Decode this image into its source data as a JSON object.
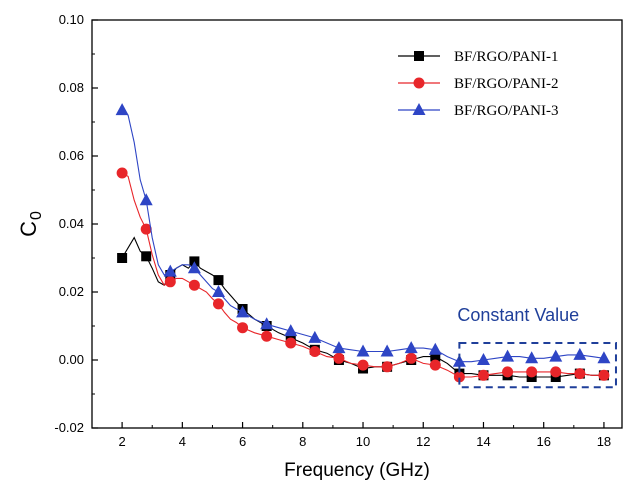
{
  "chart_data": {
    "type": "line",
    "title": "",
    "xlabel": "Frequency (GHz)",
    "ylabel": "C",
    "ylabel_subscript": "0",
    "xlim": [
      1.0,
      18.6
    ],
    "ylim": [
      -0.02,
      0.1
    ],
    "x_ticks": [
      2,
      4,
      6,
      8,
      10,
      12,
      14,
      16,
      18
    ],
    "x_tick_labels": [
      "2",
      "4",
      "6",
      "8",
      "10",
      "12",
      "14",
      "16",
      "18"
    ],
    "y_ticks": [
      -0.02,
      0.0,
      0.02,
      0.04,
      0.06,
      0.08,
      0.1
    ],
    "y_tick_labels": [
      "-0.02",
      "0.00",
      "0.02",
      "0.04",
      "0.06",
      "0.08",
      "0.10"
    ],
    "grid": false,
    "legend_position": "top-right",
    "series": [
      {
        "name": "BF/RGO/PANI-1",
        "color": "#000000",
        "marker": "square",
        "x": [
          2.0,
          2.8,
          3.6,
          4.4,
          5.2,
          6.0,
          6.8,
          7.6,
          8.4,
          9.2,
          10.0,
          10.8,
          11.6,
          12.4,
          13.2,
          14.0,
          14.8,
          15.6,
          16.4,
          17.2,
          18.0
        ],
        "y": [
          0.03,
          0.0305,
          0.025,
          0.029,
          0.0235,
          0.015,
          0.01,
          0.0065,
          0.003,
          0.0,
          -0.0025,
          -0.002,
          0.0,
          0.001,
          -0.004,
          -0.0045,
          -0.0045,
          -0.005,
          -0.005,
          -0.004,
          -0.0045
        ],
        "line_x": [
          2.0,
          2.2,
          2.4,
          2.6,
          2.8,
          3.0,
          3.2,
          3.4,
          3.6,
          3.8,
          4.0,
          4.2,
          4.4,
          4.6,
          4.8,
          5.0,
          5.2,
          5.4,
          5.6,
          5.8,
          6.0,
          6.4,
          6.8,
          7.2,
          7.6,
          8.0,
          8.4,
          8.8,
          9.2,
          9.6,
          10.0,
          10.4,
          10.8,
          11.2,
          11.6,
          12.0,
          12.4,
          12.8,
          13.2,
          13.6,
          14.0,
          14.4,
          14.8,
          15.2,
          15.6,
          16.0,
          16.4,
          16.8,
          17.2,
          17.6,
          18.0
        ],
        "line_y": [
          0.03,
          0.033,
          0.036,
          0.032,
          0.0305,
          0.027,
          0.023,
          0.022,
          0.025,
          0.027,
          0.028,
          0.027,
          0.029,
          0.027,
          0.026,
          0.025,
          0.0235,
          0.021,
          0.019,
          0.017,
          0.015,
          0.012,
          0.01,
          0.008,
          0.0065,
          0.005,
          0.003,
          0.002,
          0.0,
          -0.001,
          -0.0025,
          -0.002,
          -0.002,
          -0.001,
          0.0,
          0.001,
          0.001,
          -0.001,
          -0.004,
          -0.004,
          -0.0045,
          -0.0045,
          -0.0045,
          -0.005,
          -0.005,
          -0.005,
          -0.005,
          -0.0045,
          -0.004,
          -0.0045,
          -0.0045
        ]
      },
      {
        "name": "BF/RGO/PANI-2",
        "color": "#e8262a",
        "marker": "circle",
        "x": [
          2.0,
          2.8,
          3.6,
          4.4,
          5.2,
          6.0,
          6.8,
          7.6,
          8.4,
          9.2,
          10.0,
          10.8,
          11.6,
          12.4,
          13.2,
          14.0,
          14.8,
          15.6,
          16.4,
          17.2,
          18.0
        ],
        "y": [
          0.055,
          0.0385,
          0.023,
          0.022,
          0.0165,
          0.0095,
          0.007,
          0.005,
          0.0025,
          0.0005,
          -0.0015,
          -0.002,
          0.0005,
          -0.0015,
          -0.005,
          -0.0045,
          -0.0035,
          -0.0035,
          -0.0035,
          -0.004,
          -0.0045
        ],
        "line_x": [
          2.0,
          2.2,
          2.4,
          2.6,
          2.8,
          3.0,
          3.2,
          3.4,
          3.6,
          3.8,
          4.0,
          4.2,
          4.4,
          4.6,
          4.8,
          5.0,
          5.2,
          5.4,
          5.6,
          5.8,
          6.0,
          6.4,
          6.8,
          7.2,
          7.6,
          8.0,
          8.4,
          8.8,
          9.2,
          9.6,
          10.0,
          10.4,
          10.8,
          11.2,
          11.6,
          12.0,
          12.4,
          12.8,
          13.2,
          13.6,
          14.0,
          14.4,
          14.8,
          15.2,
          15.6,
          16.0,
          16.4,
          16.8,
          17.2,
          17.6,
          18.0
        ],
        "line_y": [
          0.055,
          0.054,
          0.047,
          0.042,
          0.0385,
          0.031,
          0.025,
          0.022,
          0.023,
          0.024,
          0.024,
          0.023,
          0.022,
          0.021,
          0.02,
          0.018,
          0.0165,
          0.014,
          0.012,
          0.011,
          0.0095,
          0.008,
          0.007,
          0.006,
          0.005,
          0.004,
          0.0025,
          0.001,
          0.0005,
          -0.001,
          -0.0015,
          -0.002,
          -0.002,
          -0.001,
          0.0005,
          -0.001,
          -0.0015,
          -0.003,
          -0.005,
          -0.005,
          -0.0045,
          -0.004,
          -0.0035,
          -0.0035,
          -0.0035,
          -0.0035,
          -0.0035,
          -0.004,
          -0.004,
          -0.0045,
          -0.0045
        ]
      },
      {
        "name": "BF/RGO/PANI-3",
        "color": "#2e45c5",
        "marker": "triangle",
        "x": [
          2.0,
          2.8,
          3.6,
          4.4,
          5.2,
          6.0,
          6.8,
          7.6,
          8.4,
          9.2,
          10.0,
          10.8,
          11.6,
          12.4,
          13.2,
          14.0,
          14.8,
          15.6,
          16.4,
          17.2,
          18.0
        ],
        "y": [
          0.0735,
          0.047,
          0.026,
          0.027,
          0.02,
          0.014,
          0.0105,
          0.0085,
          0.0065,
          0.0035,
          0.0025,
          0.0025,
          0.0035,
          0.003,
          -0.0005,
          0.0,
          0.001,
          0.0005,
          0.001,
          0.0015,
          0.0005
        ],
        "line_x": [
          2.0,
          2.2,
          2.4,
          2.6,
          2.8,
          3.0,
          3.2,
          3.4,
          3.6,
          3.8,
          4.0,
          4.2,
          4.4,
          4.6,
          4.8,
          5.0,
          5.2,
          5.4,
          5.6,
          5.8,
          6.0,
          6.4,
          6.8,
          7.2,
          7.6,
          8.0,
          8.4,
          8.8,
          9.2,
          9.6,
          10.0,
          10.4,
          10.8,
          11.2,
          11.6,
          12.0,
          12.4,
          12.8,
          13.2,
          13.6,
          14.0,
          14.4,
          14.8,
          15.2,
          15.6,
          16.0,
          16.4,
          16.8,
          17.2,
          17.6,
          18.0
        ],
        "line_y": [
          0.0735,
          0.072,
          0.064,
          0.053,
          0.047,
          0.036,
          0.028,
          0.025,
          0.026,
          0.027,
          0.028,
          0.028,
          0.027,
          0.025,
          0.023,
          0.021,
          0.02,
          0.018,
          0.016,
          0.015,
          0.014,
          0.012,
          0.0105,
          0.0095,
          0.0085,
          0.0075,
          0.0065,
          0.005,
          0.0035,
          0.003,
          0.0025,
          0.0025,
          0.0025,
          0.003,
          0.0035,
          0.0035,
          0.003,
          0.001,
          -0.0005,
          -0.0005,
          0.0,
          0.0005,
          0.001,
          0.001,
          0.0005,
          0.0005,
          0.001,
          0.0015,
          0.0015,
          0.001,
          0.0005
        ]
      }
    ],
    "annotations": [
      {
        "text": "Constant Value",
        "box_x": [
          13.2,
          18.4
        ],
        "box_y": [
          -0.008,
          0.005
        ]
      }
    ]
  }
}
